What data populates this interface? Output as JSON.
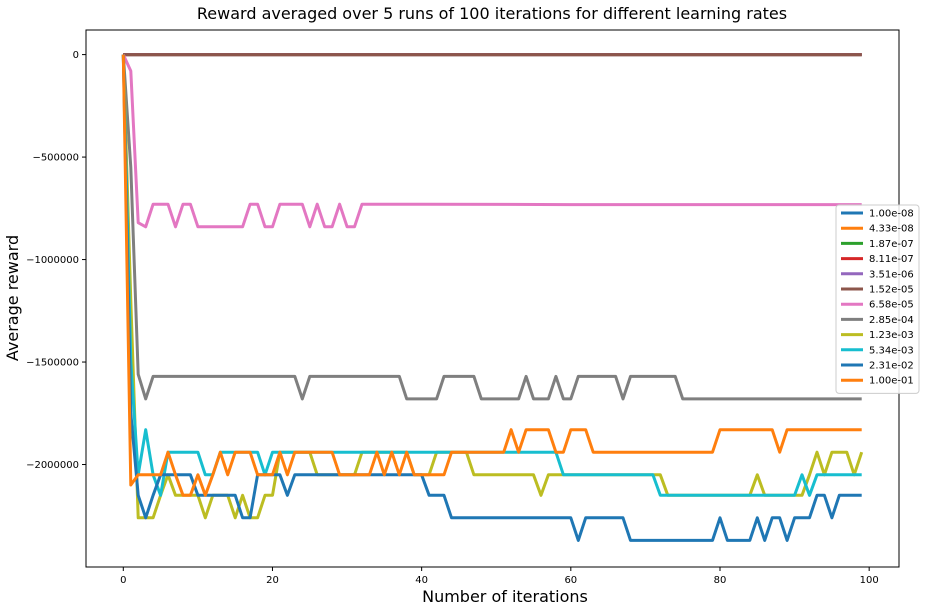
{
  "chart_data": {
    "type": "line",
    "title": "Reward averaged over 5 runs of 100 iterations for different learning rates",
    "xlabel": "Number of iterations",
    "ylabel": "Average reward",
    "xlim": [
      -5,
      104
    ],
    "ylim": [
      -2500000,
      120000
    ],
    "xticks": [
      0,
      20,
      40,
      60,
      80,
      100
    ],
    "yticks": [
      0,
      -500000,
      -1000000,
      -1500000,
      -2000000
    ],
    "ytick_labels": [
      "0",
      "−500000",
      "−1000000",
      "−1500000",
      "−2000000"
    ],
    "grid": false,
    "legend_position": "center-right",
    "series": [
      {
        "name": "1.00e-08",
        "color": "#1f77b4",
        "points": [
          [
            0,
            0
          ],
          [
            99,
            0
          ]
        ]
      },
      {
        "name": "4.33e-08",
        "color": "#ff7f0e",
        "points": [
          [
            0,
            0
          ],
          [
            99,
            0
          ]
        ]
      },
      {
        "name": "1.87e-07",
        "color": "#2ca02c",
        "points": [
          [
            0,
            0
          ],
          [
            99,
            0
          ]
        ]
      },
      {
        "name": "8.11e-07",
        "color": "#d62728",
        "points": [
          [
            0,
            0
          ],
          [
            99,
            0
          ]
        ]
      },
      {
        "name": "3.51e-06",
        "color": "#9467bd",
        "points": [
          [
            0,
            0
          ],
          [
            99,
            0
          ]
        ]
      },
      {
        "name": "1.52e-05",
        "color": "#8c564b",
        "points": [
          [
            0,
            0
          ],
          [
            99,
            0
          ]
        ]
      },
      {
        "name": "6.58e-05",
        "color": "#e377c2",
        "points": [
          [
            0,
            0
          ],
          [
            1,
            -80000
          ],
          [
            2,
            -820000
          ],
          [
            3,
            -840000
          ],
          [
            4,
            -730000
          ],
          [
            5,
            -730000
          ],
          [
            6,
            -730000
          ],
          [
            7,
            -840000
          ],
          [
            8,
            -730000
          ],
          [
            9,
            -730000
          ],
          [
            10,
            -840000
          ],
          [
            11,
            -840000
          ],
          [
            12,
            -840000
          ],
          [
            13,
            -840000
          ],
          [
            14,
            -840000
          ],
          [
            15,
            -840000
          ],
          [
            16,
            -840000
          ],
          [
            17,
            -730000
          ],
          [
            18,
            -730000
          ],
          [
            19,
            -840000
          ],
          [
            20,
            -840000
          ],
          [
            21,
            -730000
          ],
          [
            22,
            -730000
          ],
          [
            23,
            -730000
          ],
          [
            24,
            -730000
          ],
          [
            25,
            -840000
          ],
          [
            26,
            -730000
          ],
          [
            27,
            -840000
          ],
          [
            28,
            -840000
          ],
          [
            29,
            -730000
          ],
          [
            30,
            -840000
          ],
          [
            31,
            -840000
          ],
          [
            32,
            -730000
          ],
          [
            40,
            -730000
          ],
          [
            60,
            -732000
          ],
          [
            80,
            -732000
          ],
          [
            99,
            -732000
          ]
        ]
      },
      {
        "name": "2.85e-04",
        "color": "#7f7f7f",
        "points": [
          [
            0,
            0
          ],
          [
            1,
            -550000
          ],
          [
            2,
            -1560000
          ],
          [
            3,
            -1680000
          ],
          [
            4,
            -1570000
          ],
          [
            23,
            -1570000
          ],
          [
            24,
            -1680000
          ],
          [
            25,
            -1570000
          ],
          [
            37,
            -1570000
          ],
          [
            38,
            -1680000
          ],
          [
            42,
            -1680000
          ],
          [
            43,
            -1570000
          ],
          [
            47,
            -1570000
          ],
          [
            48,
            -1680000
          ],
          [
            53,
            -1680000
          ],
          [
            54,
            -1570000
          ],
          [
            55,
            -1680000
          ],
          [
            57,
            -1680000
          ],
          [
            58,
            -1570000
          ],
          [
            59,
            -1680000
          ],
          [
            60,
            -1680000
          ],
          [
            61,
            -1570000
          ],
          [
            66,
            -1570000
          ],
          [
            67,
            -1680000
          ],
          [
            68,
            -1570000
          ],
          [
            74,
            -1570000
          ],
          [
            75,
            -1680000
          ],
          [
            99,
            -1680000
          ]
        ]
      },
      {
        "name": "1.23e-03",
        "color": "#bcbd22",
        "points": [
          [
            0,
            0
          ],
          [
            1,
            -1200000
          ],
          [
            2,
            -2260000
          ],
          [
            3,
            -2260000
          ],
          [
            4,
            -2260000
          ],
          [
            5,
            -2150000
          ],
          [
            6,
            -2050000
          ],
          [
            7,
            -2150000
          ],
          [
            8,
            -2150000
          ],
          [
            9,
            -2150000
          ],
          [
            10,
            -2150000
          ],
          [
            11,
            -2260000
          ],
          [
            12,
            -2150000
          ],
          [
            13,
            -2150000
          ],
          [
            14,
            -2150000
          ],
          [
            15,
            -2260000
          ],
          [
            16,
            -2150000
          ],
          [
            17,
            -2260000
          ],
          [
            18,
            -2260000
          ],
          [
            19,
            -2150000
          ],
          [
            20,
            -2150000
          ],
          [
            21,
            -1940000
          ],
          [
            25,
            -1940000
          ],
          [
            26,
            -2050000
          ],
          [
            27,
            -2050000
          ],
          [
            28,
            -2050000
          ],
          [
            29,
            -2050000
          ],
          [
            30,
            -2050000
          ],
          [
            31,
            -2050000
          ],
          [
            32,
            -1940000
          ],
          [
            38,
            -1940000
          ],
          [
            39,
            -2050000
          ],
          [
            40,
            -2050000
          ],
          [
            41,
            -2050000
          ],
          [
            42,
            -1940000
          ],
          [
            46,
            -1940000
          ],
          [
            47,
            -2050000
          ],
          [
            55,
            -2050000
          ],
          [
            56,
            -2150000
          ],
          [
            57,
            -2050000
          ],
          [
            72,
            -2050000
          ],
          [
            73,
            -2150000
          ],
          [
            84,
            -2150000
          ],
          [
            85,
            -2050000
          ],
          [
            86,
            -2150000
          ],
          [
            91,
            -2150000
          ],
          [
            92,
            -2050000
          ],
          [
            93,
            -1940000
          ],
          [
            94,
            -2050000
          ],
          [
            95,
            -1940000
          ],
          [
            97,
            -1940000
          ],
          [
            98,
            -2050000
          ],
          [
            99,
            -1940000
          ]
        ]
      },
      {
        "name": "5.34e-03",
        "color": "#17becf",
        "points": [
          [
            0,
            0
          ],
          [
            1,
            -1500000
          ],
          [
            2,
            -2050000
          ],
          [
            3,
            -1830000
          ],
          [
            4,
            -2050000
          ],
          [
            5,
            -2150000
          ],
          [
            6,
            -1940000
          ],
          [
            10,
            -1940000
          ],
          [
            11,
            -2050000
          ],
          [
            12,
            -2050000
          ],
          [
            13,
            -1940000
          ],
          [
            18,
            -1940000
          ],
          [
            19,
            -2050000
          ],
          [
            20,
            -1940000
          ],
          [
            58,
            -1940000
          ],
          [
            59,
            -2050000
          ],
          [
            71,
            -2050000
          ],
          [
            72,
            -2150000
          ],
          [
            90,
            -2150000
          ],
          [
            91,
            -2050000
          ],
          [
            92,
            -2150000
          ],
          [
            93,
            -2050000
          ],
          [
            99,
            -2050000
          ]
        ]
      },
      {
        "name": "2.31e-02",
        "color": "#1f77b4",
        "points": [
          [
            0,
            0
          ],
          [
            1,
            -1750000
          ],
          [
            2,
            -2150000
          ],
          [
            3,
            -2260000
          ],
          [
            4,
            -2150000
          ],
          [
            5,
            -2050000
          ],
          [
            9,
            -2050000
          ],
          [
            10,
            -2150000
          ],
          [
            15,
            -2150000
          ],
          [
            16,
            -2260000
          ],
          [
            17,
            -2260000
          ],
          [
            18,
            -2050000
          ],
          [
            21,
            -2050000
          ],
          [
            22,
            -2150000
          ],
          [
            23,
            -2050000
          ],
          [
            40,
            -2050000
          ],
          [
            41,
            -2150000
          ],
          [
            43,
            -2150000
          ],
          [
            44,
            -2260000
          ],
          [
            60,
            -2260000
          ],
          [
            61,
            -2370000
          ],
          [
            62,
            -2260000
          ],
          [
            67,
            -2260000
          ],
          [
            68,
            -2370000
          ],
          [
            79,
            -2370000
          ],
          [
            80,
            -2260000
          ],
          [
            81,
            -2370000
          ],
          [
            84,
            -2370000
          ],
          [
            85,
            -2260000
          ],
          [
            86,
            -2370000
          ],
          [
            87,
            -2260000
          ],
          [
            88,
            -2260000
          ],
          [
            89,
            -2370000
          ],
          [
            90,
            -2260000
          ],
          [
            92,
            -2260000
          ],
          [
            93,
            -2150000
          ],
          [
            94,
            -2150000
          ],
          [
            95,
            -2260000
          ],
          [
            96,
            -2150000
          ],
          [
            99,
            -2150000
          ]
        ]
      },
      {
        "name": "1.00e-01",
        "color": "#ff7f0e",
        "points": [
          [
            0,
            0
          ],
          [
            1,
            -2100000
          ],
          [
            2,
            -2050000
          ],
          [
            5,
            -2050000
          ],
          [
            6,
            -1940000
          ],
          [
            7,
            -2050000
          ],
          [
            8,
            -2150000
          ],
          [
            9,
            -2150000
          ],
          [
            10,
            -2050000
          ],
          [
            11,
            -2150000
          ],
          [
            12,
            -2050000
          ],
          [
            13,
            -1940000
          ],
          [
            14,
            -2050000
          ],
          [
            15,
            -1940000
          ],
          [
            17,
            -1940000
          ],
          [
            18,
            -2050000
          ],
          [
            20,
            -2050000
          ],
          [
            21,
            -1940000
          ],
          [
            22,
            -2050000
          ],
          [
            23,
            -1940000
          ],
          [
            28,
            -1940000
          ],
          [
            29,
            -2050000
          ],
          [
            33,
            -2050000
          ],
          [
            34,
            -1940000
          ],
          [
            35,
            -2050000
          ],
          [
            36,
            -1940000
          ],
          [
            37,
            -2050000
          ],
          [
            38,
            -1940000
          ],
          [
            39,
            -2050000
          ],
          [
            43,
            -2050000
          ],
          [
            44,
            -1940000
          ],
          [
            51,
            -1940000
          ],
          [
            52,
            -1830000
          ],
          [
            53,
            -1940000
          ],
          [
            54,
            -1830000
          ],
          [
            57,
            -1830000
          ],
          [
            58,
            -1940000
          ],
          [
            59,
            -1940000
          ],
          [
            60,
            -1830000
          ],
          [
            62,
            -1830000
          ],
          [
            63,
            -1940000
          ],
          [
            79,
            -1940000
          ],
          [
            80,
            -1830000
          ],
          [
            87,
            -1830000
          ],
          [
            88,
            -1940000
          ],
          [
            89,
            -1830000
          ],
          [
            99,
            -1830000
          ]
        ]
      }
    ]
  }
}
